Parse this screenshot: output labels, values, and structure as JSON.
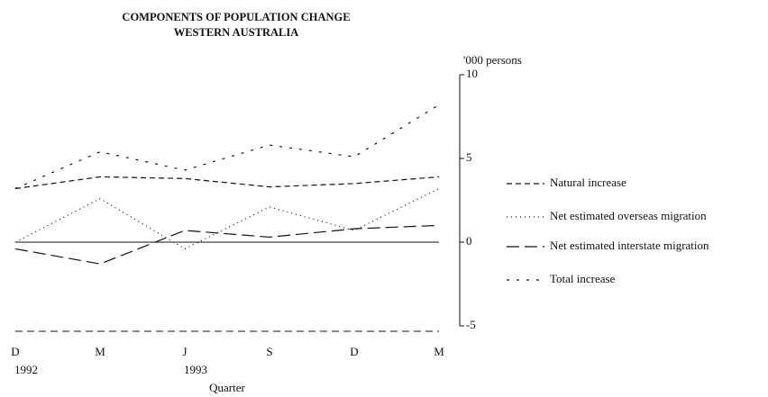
{
  "chart_data": {
    "type": "line",
    "title": "COMPONENTS OF POPULATION CHANGE",
    "subtitle": "WESTERN AUSTRALIA",
    "y_axis_label": "'000 persons",
    "x_axis_label": "Quarter",
    "categories": [
      "D",
      "M",
      "J",
      "S",
      "D",
      "M"
    ],
    "years": [
      "1992",
      null,
      "1993",
      null,
      null,
      null
    ],
    "ylim": [
      -5,
      10
    ],
    "yticks": [
      10,
      5,
      0,
      -5
    ],
    "color": "#111111",
    "series": [
      {
        "name": "Natural increase",
        "dash": "6 4",
        "values": [
          3.2,
          3.9,
          3.8,
          3.3,
          3.5,
          3.9
        ]
      },
      {
        "name": "Net estimated overseas migration",
        "dash": "1 4",
        "values": [
          0,
          2.6,
          -0.4,
          2.1,
          0.7,
          3.2
        ]
      },
      {
        "name": "Net estimated interstate migration",
        "dash": "14 6",
        "values": [
          -0.4,
          -1.3,
          0.7,
          0.3,
          0.8,
          1.0
        ]
      },
      {
        "name": "Total increase",
        "dash": "3 8",
        "values": [
          3.2,
          5.4,
          4.3,
          5.8,
          5.1,
          8.2
        ]
      }
    ]
  }
}
